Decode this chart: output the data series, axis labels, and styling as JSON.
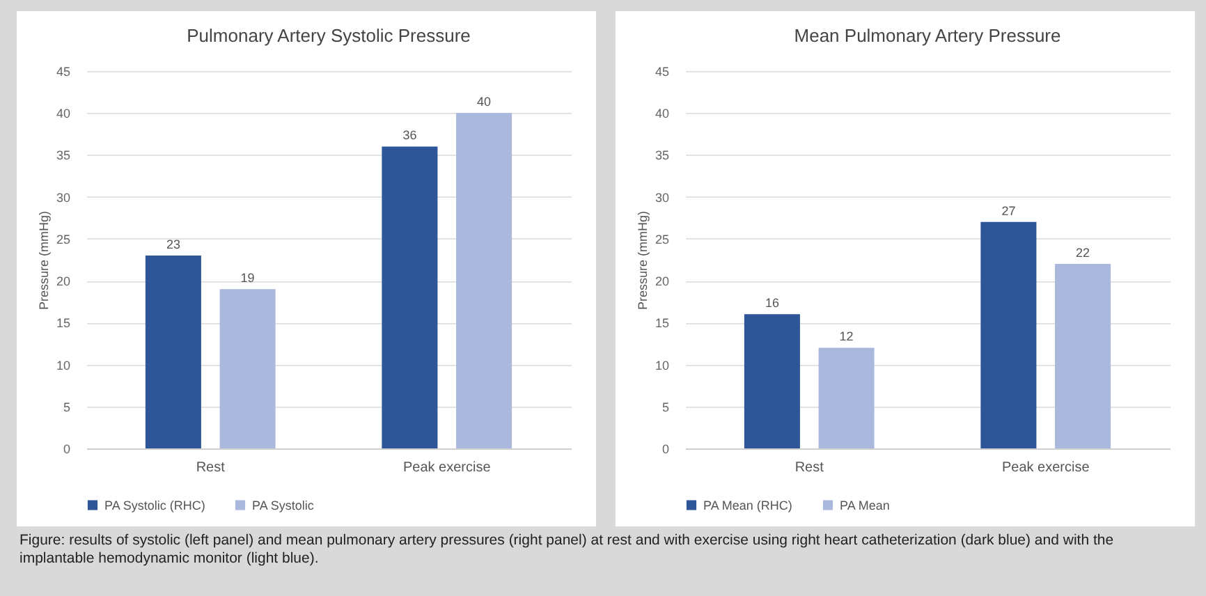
{
  "chart_data": [
    {
      "type": "bar",
      "title": "Pulmonary Artery Systolic Pressure",
      "ylabel": "Pressure (mmHg)",
      "categories": [
        "Rest",
        "Peak exercise"
      ],
      "series": [
        {
          "name": "PA Systolic (RHC)",
          "color": "#2e5597",
          "values": [
            23,
            36
          ]
        },
        {
          "name": "PA Systolic",
          "color": "#a9b8dc",
          "values": [
            19,
            40
          ]
        }
      ],
      "ylim": [
        0,
        45
      ],
      "yticks": [
        0,
        5,
        10,
        15,
        20,
        25,
        30,
        35,
        40,
        45
      ],
      "grid": "y",
      "legend": "bottom",
      "data_labels": true
    },
    {
      "type": "bar",
      "title": "Mean Pulmonary Artery Pressure",
      "ylabel": "Pressure (mmHg)",
      "categories": [
        "Rest",
        "Peak exercise"
      ],
      "series": [
        {
          "name": "PA Mean (RHC)",
          "color": "#2e5597",
          "values": [
            16,
            27
          ]
        },
        {
          "name": "PA Mean",
          "color": "#a9b8dc",
          "values": [
            12,
            22
          ]
        }
      ],
      "ylim": [
        0,
        45
      ],
      "yticks": [
        0,
        5,
        10,
        15,
        20,
        25,
        30,
        35,
        40,
        45
      ],
      "grid": "y",
      "legend": "bottom",
      "data_labels": true,
      "annotations": [
        "Figure: results of systolic (left panel) and mean pulmonary artery pressures (right panel) at rest and with exercise using right heart catheterization (dark blue) and with the implantable hemodynamic monitor (light blue)."
      ]
    }
  ]
}
